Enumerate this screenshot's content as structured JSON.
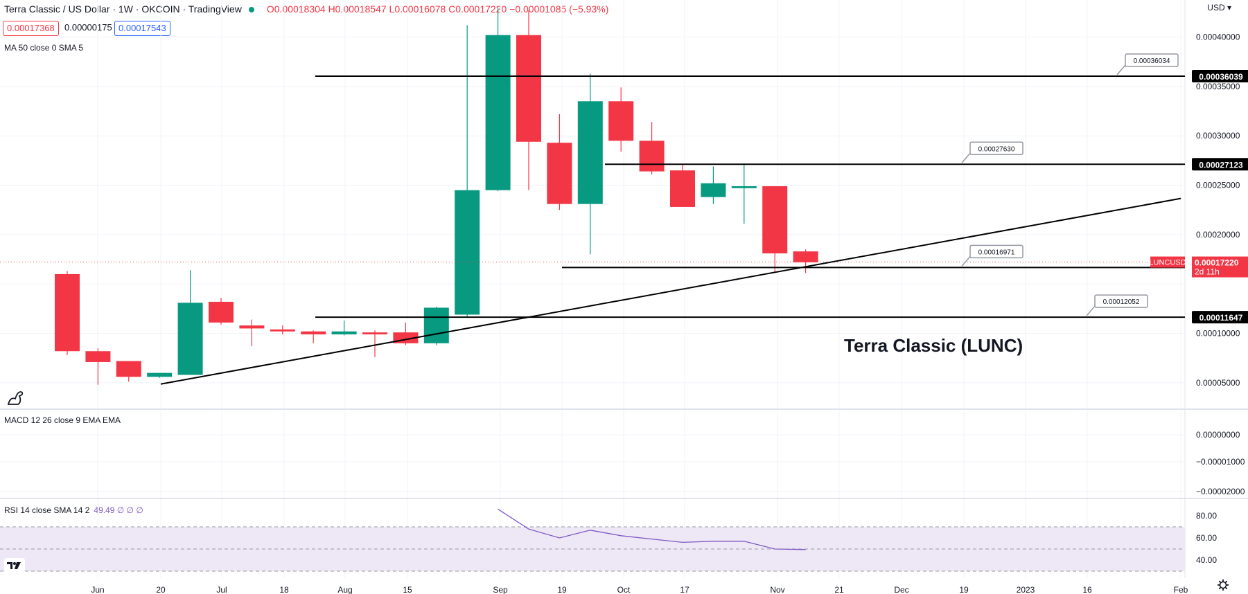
{
  "header": {
    "title": "Terra Classic / US Dollar · 1W · OKCOIN · TradingView",
    "ohlc": "O0.00018304 H0.00018547 L0.00016078 C0.00017220 −0.00001085 (−5.93%)"
  },
  "price_boxes": {
    "bid": "0.00017368",
    "spread": "0.00000175",
    "ask": "0.00017543"
  },
  "indicators": {
    "ma": "MA 50 close 0 SMA 5",
    "macd": "MACD 12 26 close 9 EMA EMA",
    "rsi": "RSI 14 close SMA 14 2",
    "rsi_values": "49.49 ∅ ∅ ∅"
  },
  "currency": "USD",
  "chart_data": {
    "type": "candlestick",
    "title": "Terra Classic (LUNC)",
    "symbol": "LUNCUSD",
    "countdown": "2d 11h",
    "x_ticks": [
      "Jun",
      "20",
      "Jul",
      "18",
      "Aug",
      "15",
      "Sep",
      "19",
      "Oct",
      "17",
      "Nov",
      "21",
      "Dec",
      "19",
      "2023",
      "16",
      "Feb"
    ],
    "y_ticks": [
      "0.00040000",
      "0.00035000",
      "0.00030000",
      "0.00025000",
      "0.00020000",
      "0.00010000",
      "0.00005000"
    ],
    "ylim": [
      2.4e-05,
      0.000427
    ],
    "candles": [
      {
        "o": 0.00016,
        "h": 0.000163,
        "l": 7.8e-05,
        "c": 8.2e-05
      },
      {
        "o": 8.2e-05,
        "h": 8.5e-05,
        "l": 4.8e-05,
        "c": 7.1e-05
      },
      {
        "o": 7.2e-05,
        "h": 7.2e-05,
        "l": 5.1e-05,
        "c": 5.6e-05
      },
      {
        "o": 5.6e-05,
        "h": 6e-05,
        "l": 5.5e-05,
        "c": 6e-05
      },
      {
        "o": 5.8e-05,
        "h": 0.000164,
        "l": 5.8e-05,
        "c": 0.000131
      },
      {
        "o": 0.000132,
        "h": 0.000136,
        "l": 0.000109,
        "c": 0.000111
      },
      {
        "o": 0.000108,
        "h": 0.000114,
        "l": 8.7e-05,
        "c": 0.000105
      },
      {
        "o": 0.000104,
        "h": 0.000108,
        "l": 9.9e-05,
        "c": 0.000102
      },
      {
        "o": 0.000102,
        "h": 0.000103,
        "l": 9e-05,
        "c": 9.9e-05
      },
      {
        "o": 9.9e-05,
        "h": 0.000113,
        "l": 9.8e-05,
        "c": 0.000102
      },
      {
        "o": 0.000101,
        "h": 0.000103,
        "l": 7.6e-05,
        "c": 9.9e-05
      },
      {
        "o": 0.000101,
        "h": 0.000111,
        "l": 8.8e-05,
        "c": 9e-05
      },
      {
        "o": 9e-05,
        "h": 0.000127,
        "l": 8.8e-05,
        "c": 0.000126
      },
      {
        "o": 0.000119,
        "h": 0.000412,
        "l": 0.000117,
        "c": 0.000245
      },
      {
        "o": 0.000245,
        "h": 0.00043,
        "l": 0.000244,
        "c": 0.000402
      },
      {
        "o": 0.000402,
        "h": 0.000427,
        "l": 0.000245,
        "c": 0.000294
      },
      {
        "o": 0.000293,
        "h": 0.000322,
        "l": 0.000225,
        "c": 0.000231
      },
      {
        "o": 0.000231,
        "h": 0.000363,
        "l": 0.00018,
        "c": 0.000335
      },
      {
        "o": 0.000335,
        "h": 0.000349,
        "l": 0.000284,
        "c": 0.000295
      },
      {
        "o": 0.000295,
        "h": 0.000314,
        "l": 0.000261,
        "c": 0.000264
      },
      {
        "o": 0.000265,
        "h": 0.000272,
        "l": 0.000228,
        "c": 0.000228
      },
      {
        "o": 0.000238,
        "h": 0.000269,
        "l": 0.000231,
        "c": 0.000252
      },
      {
        "o": 0.000247,
        "h": 0.000272,
        "l": 0.000211,
        "c": 0.000249
      },
      {
        "o": 0.000249,
        "h": 0.000249,
        "l": 0.000162,
        "c": 0.000181
      },
      {
        "o": 0.000183,
        "h": 0.000185,
        "l": 0.000161,
        "c": 0.000172
      }
    ],
    "horizontal_levels": [
      {
        "label": "0.00036039",
        "value": 0.00036039,
        "callout": "0.00036034"
      },
      {
        "label": "0.00027123",
        "value": 0.00027123,
        "callout": "0.00027630"
      },
      {
        "label": "0.00016669",
        "value": 0.00016669,
        "callout": "0.00016971"
      },
      {
        "label": "0.00011647",
        "value": 0.00011647,
        "callout": "0.00012052"
      }
    ],
    "trendline": {
      "start": 4.87e-05,
      "end": 0.0002366
    },
    "last_price": "0.00017220",
    "macd_ticks": [
      "0.00000000",
      "−0.00001000",
      "−0.00002000"
    ],
    "rsi_ticks": [
      "80.00",
      "60.00",
      "40.00"
    ],
    "rsi_band": [
      30,
      70
    ],
    "rsi_ylim": [
      30,
      90
    ],
    "rsi_values": [
      86,
      68,
      60,
      67,
      62,
      59,
      56,
      57,
      57,
      50,
      49.5
    ],
    "colors": {
      "up": "#089981",
      "down": "#f23645",
      "rsi": "#7e57c2",
      "band": "#ede7f6",
      "line": "#000000"
    }
  }
}
